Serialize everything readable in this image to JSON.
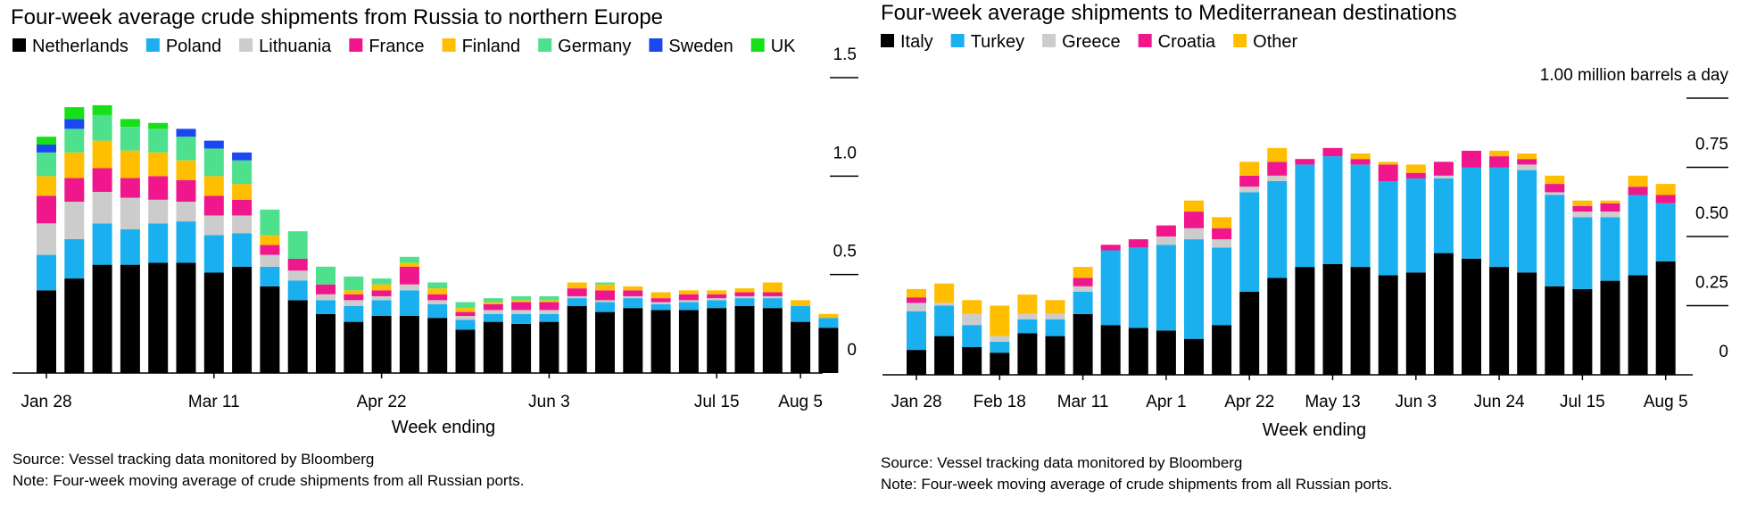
{
  "colors": {
    "black": "#000000",
    "blue_light": "#1ab0f0",
    "gray": "#cccccc",
    "pink": "#f0168c",
    "yellow": "#ffbf00",
    "green_light": "#4fe08e",
    "blue_dark": "#1a47f0",
    "green": "#18e018"
  },
  "charts": [
    {
      "title": "Four-week average crude shipments from Russia to northern Europe",
      "source": "Source: Vessel tracking data monitored by Bloomberg",
      "note": "Note: Four-week moving average of crude shipments from all Russian ports."
    },
    {
      "title": "Four-week average shipments to Mediterranean destinations",
      "source": "Source: Vessel tracking data monitored by Bloomberg",
      "note": "Note: Four-week moving average of crude shipments from all Russian ports."
    }
  ],
  "chart_data": [
    {
      "type": "bar",
      "stacked": true,
      "title": "Four-week average crude shipments from Russia to northern Europe",
      "xlabel": "Week ending",
      "ylabel": "",
      "ylim": [
        0,
        1.5
      ],
      "yticks": [
        0,
        0.5,
        1.0,
        1.5
      ],
      "ytick_labels": [
        "0",
        "0.5",
        "1.0",
        "1.5"
      ],
      "x_tick_labels": [
        {
          "label": "Jan 28",
          "index": 0
        },
        {
          "label": "Mar 11",
          "index": 6
        },
        {
          "label": "Apr 22",
          "index": 12
        },
        {
          "label": "Jun 3",
          "index": 18
        },
        {
          "label": "Jul 15",
          "index": 24
        },
        {
          "label": "Aug 5",
          "index": 27
        }
      ],
      "legend_position": "top",
      "series": [
        {
          "name": "Netherlands",
          "color": "#000000",
          "values": [
            0.42,
            0.48,
            0.55,
            0.55,
            0.56,
            0.56,
            0.51,
            0.54,
            0.44,
            0.37,
            0.3,
            0.26,
            0.29,
            0.29,
            0.28,
            0.22,
            0.26,
            0.25,
            0.26,
            0.34,
            0.31,
            0.33,
            0.32,
            0.32,
            0.33,
            0.34,
            0.33,
            0.26,
            0.23
          ]
        },
        {
          "name": "Poland",
          "color": "#1ab0f0",
          "values": [
            0.18,
            0.2,
            0.21,
            0.18,
            0.2,
            0.21,
            0.19,
            0.17,
            0.1,
            0.1,
            0.07,
            0.08,
            0.08,
            0.13,
            0.07,
            0.05,
            0.04,
            0.05,
            0.04,
            0.04,
            0.05,
            0.05,
            0.03,
            0.04,
            0.04,
            0.04,
            0.05,
            0.08,
            0.05
          ]
        },
        {
          "name": "Lithuania",
          "color": "#cccccc",
          "values": [
            0.16,
            0.19,
            0.16,
            0.16,
            0.12,
            0.1,
            0.1,
            0.09,
            0.06,
            0.05,
            0.03,
            0.03,
            0.02,
            0.03,
            0.02,
            0.02,
            0.02,
            0.02,
            0.02,
            0.01,
            0.01,
            0.01,
            0.01,
            0.01,
            0.01,
            0.01,
            0.01,
            0.0,
            0.0
          ]
        },
        {
          "name": "France",
          "color": "#f0168c",
          "values": [
            0.14,
            0.12,
            0.12,
            0.1,
            0.12,
            0.11,
            0.1,
            0.08,
            0.05,
            0.06,
            0.05,
            0.03,
            0.03,
            0.09,
            0.03,
            0.02,
            0.03,
            0.04,
            0.04,
            0.04,
            0.05,
            0.03,
            0.02,
            0.03,
            0.02,
            0.02,
            0.02,
            0.0,
            0.0
          ]
        },
        {
          "name": "Finland",
          "color": "#ffbf00",
          "values": [
            0.1,
            0.13,
            0.14,
            0.14,
            0.12,
            0.1,
            0.1,
            0.08,
            0.05,
            0.0,
            0.0,
            0.02,
            0.03,
            0.02,
            0.03,
            0.02,
            0.01,
            0.01,
            0.01,
            0.03,
            0.03,
            0.02,
            0.03,
            0.02,
            0.02,
            0.02,
            0.05,
            0.03,
            0.02
          ]
        },
        {
          "name": "Germany",
          "color": "#4fe08e",
          "values": [
            0.12,
            0.12,
            0.13,
            0.12,
            0.12,
            0.12,
            0.14,
            0.12,
            0.13,
            0.14,
            0.09,
            0.07,
            0.03,
            0.03,
            0.03,
            0.03,
            0.02,
            0.02,
            0.02,
            0.0,
            0.01,
            0.0,
            0.0,
            0.0,
            0.0,
            0.0,
            0.0,
            0.0,
            0.0
          ]
        },
        {
          "name": "Sweden",
          "color": "#1a47f0",
          "values": [
            0.04,
            0.05,
            0.0,
            0.0,
            0.0,
            0.04,
            0.04,
            0.04,
            0.0,
            0.0,
            0.0,
            0.0,
            0.0,
            0.0,
            0.0,
            0.0,
            0.0,
            0.0,
            0.0,
            0.0,
            0.0,
            0.0,
            0.0,
            0.0,
            0.0,
            0.0,
            0.0,
            0.0,
            0.0
          ]
        },
        {
          "name": "UK",
          "color": "#18e018",
          "values": [
            0.04,
            0.06,
            0.05,
            0.04,
            0.03,
            0.0,
            0.0,
            0.0,
            0.0,
            0.0,
            0.0,
            0.0,
            0.0,
            0.0,
            0.0,
            0.0,
            0.0,
            0.0,
            0.0,
            0.0,
            0.0,
            0.0,
            0.0,
            0.0,
            0.0,
            0.0,
            0.0,
            0.0,
            0.0
          ]
        }
      ]
    },
    {
      "type": "bar",
      "stacked": true,
      "title": "Four-week average shipments to Mediterranean destinations",
      "xlabel": "Week ending",
      "ylabel": "",
      "unit_label": "1.00 million barrels a day",
      "ylim": [
        0,
        1.0
      ],
      "yticks": [
        0,
        0.25,
        0.5,
        0.75,
        1.0
      ],
      "ytick_labels": [
        "0",
        "0.25",
        "0.50",
        "0.75",
        "1.00 million barrels a day"
      ],
      "x_tick_labels": [
        {
          "label": "Jan 28",
          "index": 0
        },
        {
          "label": "Feb 18",
          "index": 3
        },
        {
          "label": "Mar 11",
          "index": 6
        },
        {
          "label": "Apr 1",
          "index": 9
        },
        {
          "label": "Apr 22",
          "index": 12
        },
        {
          "label": "May 13",
          "index": 15
        },
        {
          "label": "Jun 3",
          "index": 18
        },
        {
          "label": "Jun 24",
          "index": 21
        },
        {
          "label": "Jul 15",
          "index": 24
        },
        {
          "label": "Aug 5",
          "index": 27
        }
      ],
      "legend_position": "top",
      "series": [
        {
          "name": "Italy",
          "color": "#000000",
          "values": [
            0.09,
            0.14,
            0.1,
            0.08,
            0.15,
            0.14,
            0.22,
            0.18,
            0.17,
            0.16,
            0.13,
            0.18,
            0.3,
            0.35,
            0.39,
            0.4,
            0.39,
            0.36,
            0.37,
            0.44,
            0.42,
            0.39,
            0.37,
            0.32,
            0.31,
            0.34,
            0.36,
            0.41
          ]
        },
        {
          "name": "Turkey",
          "color": "#1ab0f0",
          "values": [
            0.14,
            0.11,
            0.08,
            0.04,
            0.05,
            0.06,
            0.08,
            0.27,
            0.29,
            0.31,
            0.36,
            0.28,
            0.36,
            0.35,
            0.37,
            0.39,
            0.37,
            0.34,
            0.34,
            0.27,
            0.33,
            0.36,
            0.37,
            0.33,
            0.26,
            0.23,
            0.29,
            0.21
          ]
        },
        {
          "name": "Greece",
          "color": "#cccccc",
          "values": [
            0.03,
            0.01,
            0.04,
            0.02,
            0.02,
            0.02,
            0.02,
            0.0,
            0.0,
            0.03,
            0.04,
            0.03,
            0.02,
            0.02,
            0.0,
            0.0,
            0.0,
            0.0,
            0.0,
            0.01,
            0.0,
            0.0,
            0.02,
            0.01,
            0.02,
            0.02,
            0.0,
            0.0
          ]
        },
        {
          "name": "Croatia",
          "color": "#f0168c",
          "values": [
            0.02,
            0.0,
            0.0,
            0.0,
            0.0,
            0.0,
            0.03,
            0.02,
            0.03,
            0.04,
            0.06,
            0.04,
            0.04,
            0.05,
            0.02,
            0.03,
            0.02,
            0.06,
            0.02,
            0.05,
            0.06,
            0.04,
            0.02,
            0.03,
            0.02,
            0.03,
            0.03,
            0.03
          ]
        },
        {
          "name": "Other",
          "color": "#ffbf00",
          "values": [
            0.03,
            0.07,
            0.05,
            0.11,
            0.07,
            0.05,
            0.04,
            0.0,
            0.0,
            0.0,
            0.04,
            0.04,
            0.05,
            0.05,
            0.0,
            0.0,
            0.02,
            0.01,
            0.03,
            0.0,
            0.0,
            0.02,
            0.02,
            0.03,
            0.02,
            0.01,
            0.04,
            0.04
          ]
        }
      ]
    }
  ]
}
